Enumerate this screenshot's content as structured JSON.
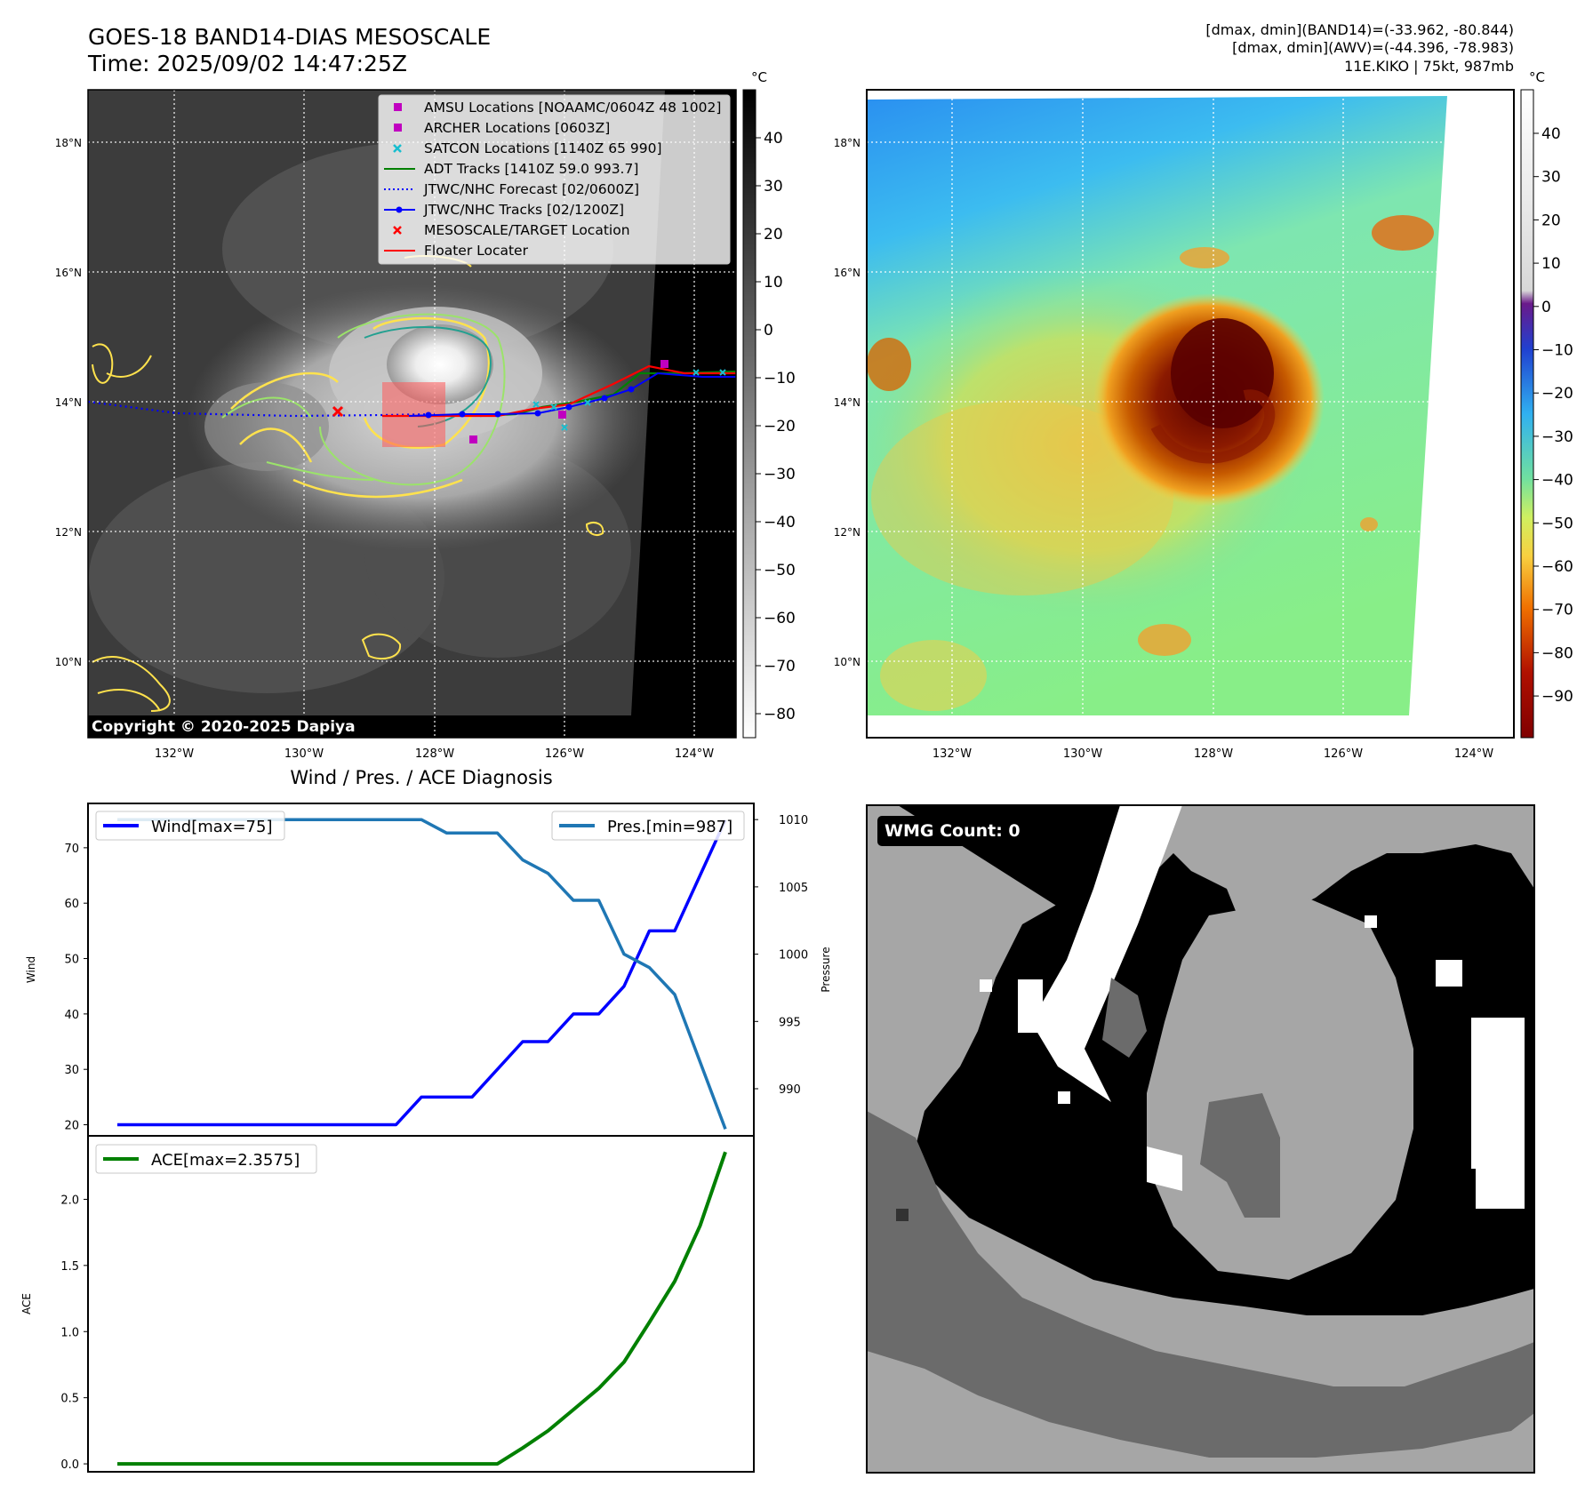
{
  "header": {
    "title": "GOES-18 BAND14-DIAS MESOSCALE",
    "time": "Time: 2025/09/02 14:47:25Z",
    "stats_band14": "[dmax, dmin](BAND14)=(-33.962, -80.844)",
    "stats_awv": "[dmax, dmin](AWV)=(-44.396, -78.983)",
    "storm": "11E.KIKO | 75kt, 987mb"
  },
  "maps": {
    "lon_ticks": [
      "132°W",
      "130°W",
      "128°W",
      "126°W",
      "124°W"
    ],
    "lat_ticks": [
      "18°N",
      "16°N",
      "14°N",
      "12°N",
      "10°N"
    ],
    "colorbar_unit": "°C",
    "gray_colorbar_ticks": [
      "40",
      "30",
      "20",
      "10",
      "0",
      "−10",
      "−20",
      "−30",
      "−40",
      "−50",
      "−60",
      "−70",
      "−80"
    ],
    "color_colorbar_ticks": [
      "40",
      "30",
      "20",
      "10",
      "0",
      "−10",
      "−20",
      "−30",
      "−40",
      "−50",
      "−60",
      "−70",
      "−80",
      "−90"
    ],
    "copyright": "Copyright © 2020-2025 Dapiya",
    "legend": [
      {
        "label": "AMSU Locations [NOAAMC/0604Z 48 1002]",
        "color": "#c000c0",
        "marker": "square"
      },
      {
        "label": "ARCHER Locations [0603Z]",
        "color": "#c000c0",
        "marker": "square"
      },
      {
        "label": "SATCON Locations [1140Z 65 990]",
        "color": "#17becf",
        "marker": "x"
      },
      {
        "label": "ADT Tracks [1410Z 59.0 993.7]",
        "color": "#008000",
        "marker": "line"
      },
      {
        "label": "JTWC/NHC Forecast [02/0600Z]",
        "color": "#0000ff",
        "marker": "dotted"
      },
      {
        "label": "JTWC/NHC Tracks [02/1200Z]",
        "color": "#0000ff",
        "marker": "line-dot"
      },
      {
        "label": "MESOSCALE/TARGET Location",
        "color": "#ff0000",
        "marker": "x"
      },
      {
        "label": "Floater Locater",
        "color": "#ff0000",
        "marker": "line"
      }
    ]
  },
  "wmg": {
    "label": "WMG Count: 0"
  },
  "chart_data": [
    {
      "type": "line",
      "title": "Wind / Pres. / ACE Diagnosis",
      "ylabel": "Wind",
      "y2label": "Pressure",
      "x": [
        0,
        1,
        2,
        3,
        4,
        5,
        6,
        7,
        8,
        9,
        10,
        11,
        12,
        13,
        14,
        15,
        16,
        17,
        18,
        19,
        20,
        21,
        22,
        23,
        24
      ],
      "ylim": [
        18,
        78
      ],
      "y2lim": [
        986.5,
        1011.2
      ],
      "yticks": [
        20,
        30,
        40,
        50,
        60,
        70
      ],
      "y2ticks": [
        990,
        995,
        1000,
        1005,
        1010
      ],
      "series": [
        {
          "name": "Wind[max=75]",
          "axis": "left",
          "color": "#0000ff",
          "values": [
            20,
            20,
            20,
            20,
            20,
            20,
            20,
            20,
            20,
            20,
            20,
            20,
            25,
            25,
            25,
            30,
            35,
            35,
            40,
            40,
            45,
            55,
            55,
            65,
            75
          ]
        },
        {
          "name": "Pres.[min=987]",
          "axis": "right",
          "color": "#1f77b4",
          "values": [
            1010,
            1010,
            1010,
            1010,
            1010,
            1010,
            1010,
            1010,
            1010,
            1010,
            1010,
            1010,
            1010,
            1009,
            1009,
            1009,
            1007,
            1006,
            1004,
            1004,
            1000,
            999,
            997,
            992,
            987
          ]
        }
      ]
    },
    {
      "type": "line",
      "ylabel": "ACE",
      "x": [
        0,
        1,
        2,
        3,
        4,
        5,
        6,
        7,
        8,
        9,
        10,
        11,
        12,
        13,
        14,
        15,
        16,
        17,
        18,
        19,
        20,
        21,
        22,
        23,
        24
      ],
      "ylim": [
        -0.06,
        2.48
      ],
      "yticks": [
        "0.0",
        "0.5",
        "1.0",
        "1.5",
        "2.0"
      ],
      "series": [
        {
          "name": "ACE[max=2.3575]",
          "color": "#008000",
          "values": [
            0,
            0,
            0,
            0,
            0,
            0,
            0,
            0,
            0,
            0,
            0,
            0,
            0,
            0,
            0,
            0,
            0.12,
            0.25,
            0.41,
            0.57,
            0.77,
            1.07,
            1.38,
            1.8,
            2.3575
          ]
        }
      ]
    }
  ]
}
